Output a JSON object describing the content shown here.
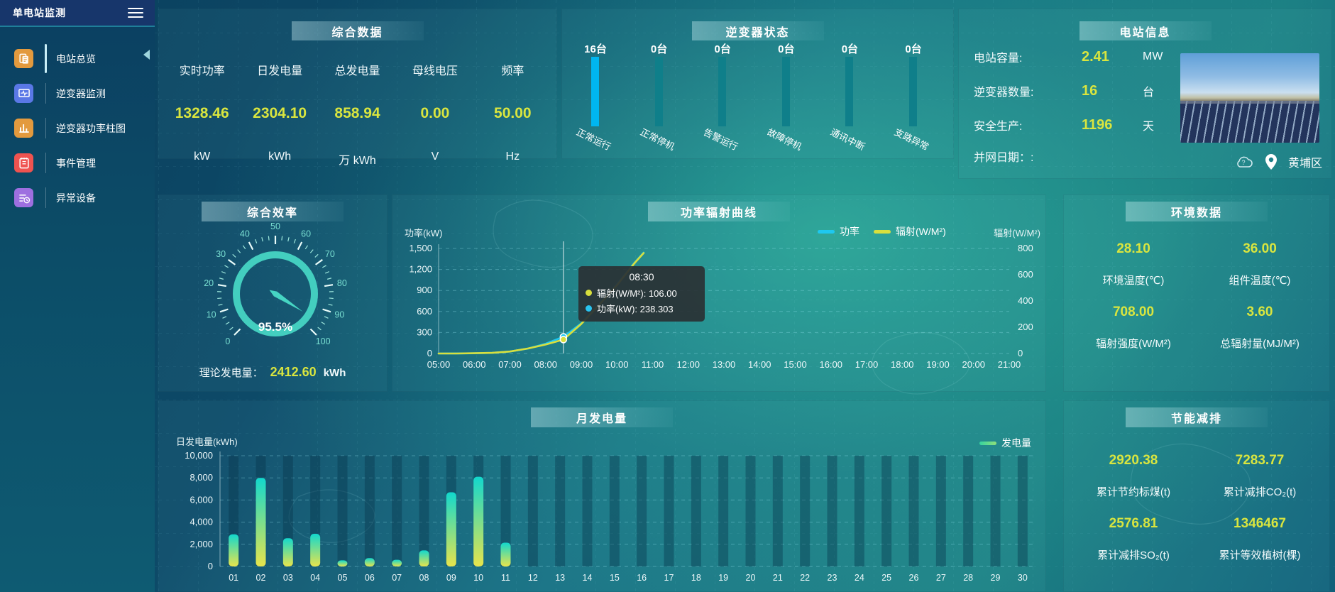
{
  "app": {
    "title": "单电站监测"
  },
  "sidebar": {
    "items": [
      {
        "label": "电站总览",
        "icon": "station-overview-icon",
        "color": "#e39a3e",
        "active": true
      },
      {
        "label": "逆变器监测",
        "icon": "inverter-monitor-icon",
        "color": "#5a78e6",
        "active": false
      },
      {
        "label": "逆变器功率柱图",
        "icon": "inverter-power-bars-icon",
        "color": "#e39a3e",
        "active": false
      },
      {
        "label": "事件管理",
        "icon": "event-management-icon",
        "color": "#ef5350",
        "active": false
      },
      {
        "label": "异常设备",
        "icon": "abnormal-device-icon",
        "color": "#9e6fe0",
        "active": false
      }
    ]
  },
  "summary": {
    "title": "综合数据",
    "metrics": [
      {
        "label": "实时功率",
        "value": "1328.46",
        "unit": "kW"
      },
      {
        "label": "日发电量",
        "value": "2304.10",
        "unit": "kWh"
      },
      {
        "label": "总发电量",
        "value": "858.94",
        "unit": "万 kWh"
      },
      {
        "label": "母线电压",
        "value": "0.00",
        "unit": "V"
      },
      {
        "label": "频率",
        "value": "50.00",
        "unit": "Hz"
      }
    ]
  },
  "inverter_status": {
    "title": "逆变器状态",
    "bar_color_active": "#00b6f0",
    "bar_color": "#0f7f8a",
    "bars": [
      {
        "count": "16台",
        "label": "正常运行",
        "highlight": true
      },
      {
        "count": "0台",
        "label": "正常停机",
        "highlight": false
      },
      {
        "count": "0台",
        "label": "告警运行",
        "highlight": false
      },
      {
        "count": "0台",
        "label": "故障停机",
        "highlight": false
      },
      {
        "count": "0台",
        "label": "通讯中断",
        "highlight": false
      },
      {
        "count": "0台",
        "label": "支路异常",
        "highlight": false
      }
    ]
  },
  "station_info": {
    "title": "电站信息",
    "rows": [
      {
        "label": "电站容量:",
        "value": "2.41",
        "unit": "MW"
      },
      {
        "label": "逆变器数量:",
        "value": "16",
        "unit": "台"
      },
      {
        "label": "安全生产:",
        "value": "1196",
        "unit": "天"
      },
      {
        "label": "并网日期：:",
        "value": "",
        "unit": ""
      }
    ],
    "location": "黄埔区"
  },
  "efficiency": {
    "title": "综合效率",
    "value_label": "95.5%",
    "theory_label": "理论发电量：",
    "theory_value": "2412.60",
    "theory_unit": "kWh"
  },
  "power_curve": {
    "title": "功率辐射曲线",
    "tooltip": {
      "time": "08:30",
      "rows": [
        {
          "dot": "#d8df3d",
          "text": "辐射(W/M²): 106.00"
        },
        {
          "dot": "#29c4f0",
          "text": "功率(kW): 238.303"
        }
      ]
    }
  },
  "environment": {
    "title": "环境数据",
    "metrics": [
      {
        "value": "28.10",
        "label": "环境温度(℃)"
      },
      {
        "value": "36.00",
        "label": "组件温度(℃)"
      },
      {
        "value": "708.00",
        "label": "辐射强度(W/M²)"
      },
      {
        "value": "3.60",
        "label": "总辐射量(MJ/M²)"
      }
    ]
  },
  "monthly": {
    "title": "月发电量"
  },
  "saving": {
    "title": "节能减排",
    "metrics": [
      {
        "value": "2920.38",
        "label": "累计节约标煤(t)"
      },
      {
        "value": "7283.77",
        "label": "累计减排CO₂(t)"
      },
      {
        "value": "2576.81",
        "label": "累计减排SO₂(t)"
      },
      {
        "value": "1346467",
        "label": "累计等效植树(棵)"
      }
    ]
  },
  "colors": {
    "accent_yellow": "#d9e53f",
    "line_power": "#1ec8f0",
    "line_radiation": "#d8df3d",
    "gauge": "#46d5c3",
    "bar_top": "#12d8cd",
    "bar_bottom": "#e7e44c"
  },
  "chart_data": [
    {
      "id": "power_radiation",
      "type": "line",
      "title": "功率辐射曲线",
      "ylabel_left": "功率(kW)",
      "ylabel_right": "辐射(W/M²)",
      "ylim_left": [
        0,
        1500
      ],
      "ylim_right": [
        0,
        800
      ],
      "yticks_left": [
        "1,500",
        "1,200",
        "900",
        "600",
        "300",
        "0"
      ],
      "yticks_right": [
        "800",
        "600",
        "400",
        "200",
        "0"
      ],
      "x_labels": [
        "05:00",
        "06:00",
        "07:00",
        "08:00",
        "09:00",
        "10:00",
        "11:00",
        "12:00",
        "13:00",
        "14:00",
        "15:00",
        "16:00",
        "17:00",
        "18:00",
        "19:00",
        "20:00",
        "21:00"
      ],
      "grid": true,
      "legend_position": "top-right",
      "legend": [
        {
          "name": "功率",
          "color": "#1ec8f0"
        },
        {
          "name": "辐射(W/M²)",
          "color": "#d8df3d"
        }
      ],
      "crosshair_x": "08:30",
      "series": [
        {
          "name": "功率",
          "axis": "left",
          "color": "#1ec8f0",
          "points": [
            [
              "05:00",
              0
            ],
            [
              "05:30",
              1
            ],
            [
              "06:00",
              3
            ],
            [
              "06:30",
              9
            ],
            [
              "07:00",
              28
            ],
            [
              "07:30",
              70
            ],
            [
              "08:00",
              140
            ],
            [
              "08:30",
              238.3
            ],
            [
              "09:00",
              430
            ],
            [
              "09:30",
              700
            ],
            [
              "10:00",
              990
            ],
            [
              "10:30",
              1300
            ],
            [
              "10:45",
              1440
            ]
          ]
        },
        {
          "name": "辐射(W/M²)",
          "axis": "right",
          "color": "#d8df3d",
          "points": [
            [
              "05:00",
              0
            ],
            [
              "05:30",
              0
            ],
            [
              "06:00",
              2
            ],
            [
              "06:30",
              5
            ],
            [
              "07:00",
              15
            ],
            [
              "07:30",
              38
            ],
            [
              "08:00",
              68
            ],
            [
              "08:30",
              106
            ],
            [
              "09:00",
              225
            ],
            [
              "09:30",
              370
            ],
            [
              "10:00",
              520
            ],
            [
              "10:30",
              690
            ],
            [
              "10:45",
              765
            ]
          ]
        }
      ]
    },
    {
      "id": "monthly_generation",
      "type": "bar",
      "title": "月发电量",
      "ylabel": "日发电量(kWh)",
      "ylim": [
        0,
        10000
      ],
      "yticks": [
        "10,000",
        "8,000",
        "6,000",
        "4,000",
        "2,000",
        "0"
      ],
      "categories": [
        "01",
        "02",
        "03",
        "04",
        "05",
        "06",
        "07",
        "08",
        "09",
        "10",
        "11",
        "12",
        "13",
        "14",
        "15",
        "16",
        "17",
        "18",
        "19",
        "20",
        "21",
        "22",
        "23",
        "24",
        "25",
        "26",
        "27",
        "28",
        "29",
        "30"
      ],
      "values": [
        2900,
        8000,
        2550,
        2950,
        550,
        750,
        600,
        1450,
        6700,
        8100,
        2150,
        0,
        0,
        0,
        0,
        0,
        0,
        0,
        0,
        0,
        0,
        0,
        0,
        0,
        0,
        0,
        0,
        0,
        0,
        0
      ],
      "legend": [
        {
          "name": "发电量",
          "color": "#35d3a0"
        }
      ],
      "grid": true,
      "legend_position": "top-right"
    },
    {
      "id": "efficiency_gauge",
      "type": "gauge",
      "value": 95.5,
      "min": 0,
      "max": 100,
      "ticks": [
        0,
        10,
        20,
        30,
        40,
        50,
        60,
        70,
        80,
        90,
        100
      ],
      "label": "95.5%"
    },
    {
      "id": "inverter_bars",
      "type": "bar",
      "categories": [
        "正常运行",
        "正常停机",
        "告警运行",
        "故障停机",
        "通讯中断",
        "支路异常"
      ],
      "values": [
        16,
        0,
        0,
        0,
        0,
        0
      ]
    }
  ]
}
